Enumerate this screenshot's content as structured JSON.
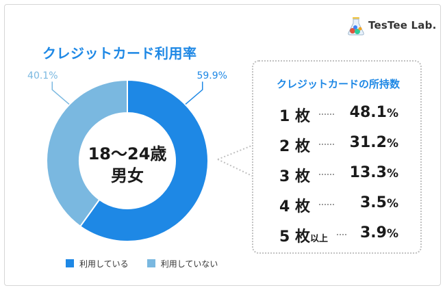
{
  "logo": {
    "text": "TesTee Lab."
  },
  "chart_data": {
    "type": "pie",
    "title": "クレジットカード利用率",
    "center_label_line1": "18〜24歳",
    "center_label_line2": "男女",
    "slices": [
      {
        "name": "利用している",
        "value": 59.9,
        "label": "59.9%",
        "color": "#1e88e5"
      },
      {
        "name": "利用していない",
        "value": 40.1,
        "label": "40.1%",
        "color": "#7ab8e0"
      }
    ],
    "legend_position": "bottom"
  },
  "cards_held": {
    "title": "クレジットカードの所持数",
    "rows": [
      {
        "count": "1",
        "unit": "枚",
        "suffix": "",
        "pct": "48.1",
        "psign": "%"
      },
      {
        "count": "2",
        "unit": "枚",
        "suffix": "",
        "pct": "31.2",
        "psign": "%"
      },
      {
        "count": "3",
        "unit": "枚",
        "suffix": "",
        "pct": "13.3",
        "psign": "%"
      },
      {
        "count": "4",
        "unit": "枚",
        "suffix": "",
        "pct": "3.5",
        "psign": "%"
      },
      {
        "count": "5",
        "unit": "枚",
        "suffix": "以上",
        "pct": "3.9",
        "psign": "%"
      }
    ]
  },
  "colors": {
    "primary": "#1e88e5",
    "secondary": "#7ab8e0",
    "text": "#1a1a1a"
  }
}
